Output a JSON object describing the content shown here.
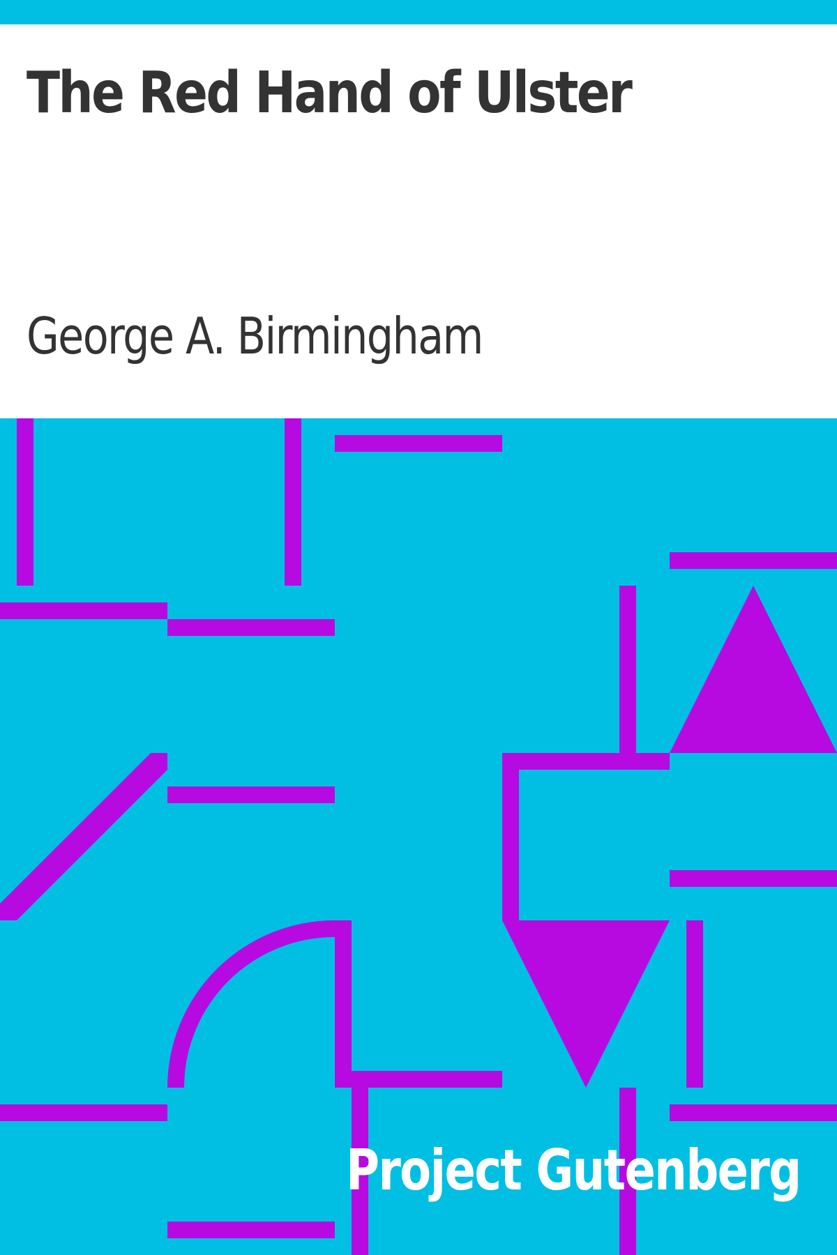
{
  "cover": {
    "title": "The Red Hand of Ulster",
    "author": "George A. Birmingham",
    "publisher": "Project Gutenberg"
  },
  "colors": {
    "background": "#00bfe3",
    "pattern": "#b70ae0",
    "title_text": "#333333",
    "publisher_text": "#ffffff"
  }
}
